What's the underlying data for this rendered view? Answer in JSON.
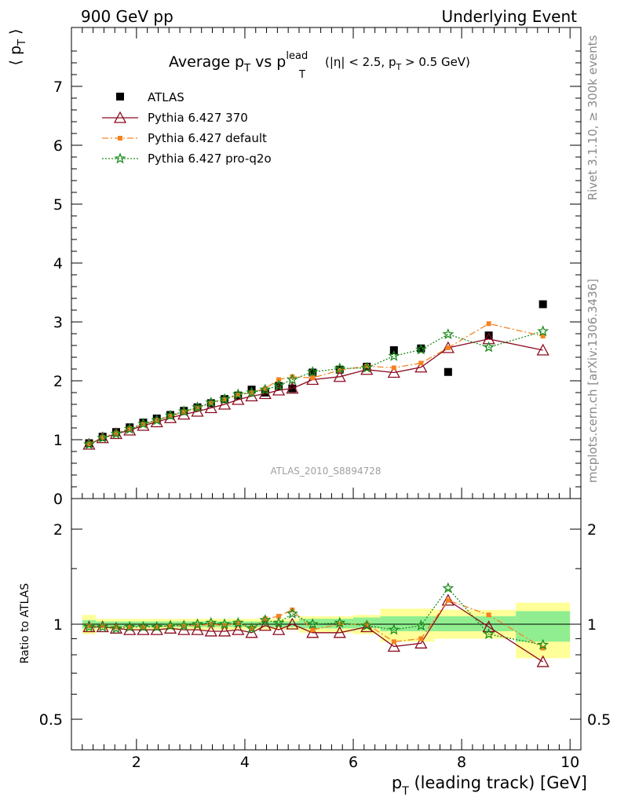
{
  "header": {
    "left": "900 GeV pp",
    "right": "Underlying Event"
  },
  "plot_title": {
    "main": "Average p",
    "main_sub": "T",
    "vs": " vs p",
    "vs_sup": "lead",
    "vs_sub": "T",
    "cuts_a": "(|η| < 2.5, p",
    "cuts_sub": "T",
    "cuts_b": " > 0.5 GeV)"
  },
  "side_labels": {
    "rivet": "Rivet 3.1.10, ≥ 300k events",
    "mcplots": "mcplots.cern.ch [arXiv:1306.3436]"
  },
  "analysis_label": "ATLAS_2010_S8894728",
  "colors": {
    "atlas": "#000000",
    "p370": "#8b0a1e",
    "default": "#f58220",
    "proq2o": "#1e8c1e",
    "band_inner": "#90ee90",
    "band_outer": "#ffff99"
  },
  "chart_data": [
    {
      "type": "scatter",
      "panel": "main",
      "ylabel_a": "⟨ p",
      "ylabel_sub": "T",
      "ylabel_b": " ⟩",
      "xlim": [
        0.8,
        10.2
      ],
      "ylim": [
        0,
        8
      ],
      "yticks": [
        0,
        1,
        2,
        3,
        4,
        5,
        6,
        7
      ],
      "legend_position": "top-left",
      "x": [
        1.125,
        1.375,
        1.625,
        1.875,
        2.125,
        2.375,
        2.625,
        2.875,
        3.125,
        3.375,
        3.625,
        3.875,
        4.125,
        4.375,
        4.625,
        4.875,
        5.25,
        5.75,
        6.25,
        6.75,
        7.25,
        7.75,
        8.5,
        9.5
      ],
      "series": [
        {
          "name": "ATLAS",
          "marker": "square",
          "values": [
            0.94,
            1.05,
            1.13,
            1.21,
            1.29,
            1.36,
            1.42,
            1.49,
            1.55,
            1.62,
            1.69,
            1.75,
            1.85,
            1.8,
            1.91,
            1.87,
            2.14,
            2.19,
            2.24,
            2.52,
            2.55,
            2.15,
            2.77,
            3.3
          ]
        },
        {
          "name": "Pythia 6.427 370",
          "marker": "triangle",
          "values": [
            0.92,
            1.03,
            1.1,
            1.16,
            1.24,
            1.3,
            1.37,
            1.43,
            1.48,
            1.54,
            1.6,
            1.68,
            1.74,
            1.78,
            1.84,
            1.87,
            2.02,
            2.07,
            2.19,
            2.14,
            2.23,
            2.56,
            2.71,
            2.52
          ]
        },
        {
          "name": "Pythia 6.427 default",
          "marker": "small-square",
          "values": [
            0.93,
            1.04,
            1.11,
            1.19,
            1.26,
            1.33,
            1.4,
            1.47,
            1.53,
            1.62,
            1.68,
            1.76,
            1.8,
            1.87,
            2.02,
            2.07,
            2.05,
            2.18,
            2.25,
            2.22,
            2.3,
            2.56,
            2.97,
            2.76
          ]
        },
        {
          "name": "Pythia 6.427 pro-q2o",
          "marker": "star",
          "values": [
            0.92,
            1.03,
            1.1,
            1.18,
            1.27,
            1.33,
            1.41,
            1.48,
            1.55,
            1.63,
            1.69,
            1.77,
            1.8,
            1.85,
            1.92,
            2.02,
            2.15,
            2.21,
            2.22,
            2.42,
            2.53,
            2.79,
            2.57,
            2.84
          ]
        }
      ]
    },
    {
      "type": "scatter",
      "panel": "ratio",
      "ylabel": "Ratio to ATLAS",
      "xlabel_a": "p",
      "xlabel_sub": "T",
      "xlabel_b": " (leading track) [GeV]",
      "scale": "log",
      "ylim": [
        0.4,
        2.5
      ],
      "yticks": [
        0.5,
        1,
        2
      ],
      "xticks": [
        2,
        4,
        6,
        8,
        10
      ],
      "x": [
        1.125,
        1.375,
        1.625,
        1.875,
        2.125,
        2.375,
        2.625,
        2.875,
        3.125,
        3.375,
        3.625,
        3.875,
        4.125,
        4.375,
        4.625,
        4.875,
        5.25,
        5.75,
        6.25,
        6.75,
        7.25,
        7.75,
        8.5,
        9.5
      ],
      "series": [
        {
          "name": "Pythia 6.427 370",
          "values": [
            0.98,
            0.98,
            0.97,
            0.96,
            0.96,
            0.96,
            0.97,
            0.96,
            0.96,
            0.95,
            0.95,
            0.96,
            0.94,
            0.99,
            0.96,
            1.0,
            0.94,
            0.94,
            0.98,
            0.85,
            0.87,
            1.19,
            0.98,
            0.76
          ]
        },
        {
          "name": "Pythia 6.427 default",
          "values": [
            0.99,
            0.99,
            0.98,
            0.98,
            0.98,
            0.98,
            0.99,
            0.99,
            0.99,
            1.0,
            0.99,
            1.01,
            0.97,
            1.04,
            1.06,
            1.11,
            0.96,
            1.0,
            1.0,
            0.88,
            0.9,
            1.19,
            1.07,
            0.84
          ]
        },
        {
          "name": "Pythia 6.427 pro-q2o",
          "values": [
            0.98,
            0.98,
            0.97,
            0.98,
            0.98,
            0.98,
            0.99,
            0.99,
            1.0,
            1.01,
            1.0,
            1.01,
            0.97,
            1.03,
            1.01,
            1.08,
            1.0,
            1.01,
            0.99,
            0.96,
            0.99,
            1.3,
            0.93,
            0.86
          ]
        }
      ],
      "bands": [
        {
          "x0": 1.0,
          "x1": 1.25,
          "inner": [
            0.97,
            1.03
          ],
          "outer": [
            0.93,
            1.07
          ]
        },
        {
          "x0": 1.25,
          "x1": 5.0,
          "inner": [
            0.98,
            1.02
          ],
          "outer": [
            0.96,
            1.04
          ]
        },
        {
          "x0": 5.0,
          "x1": 6.0,
          "inner": [
            0.97,
            1.04
          ],
          "outer": [
            0.94,
            1.06
          ]
        },
        {
          "x0": 6.0,
          "x1": 6.5,
          "inner": [
            0.97,
            1.05
          ],
          "outer": [
            0.93,
            1.07
          ]
        },
        {
          "x0": 6.5,
          "x1": 7.5,
          "inner": [
            0.95,
            1.06
          ],
          "outer": [
            0.88,
            1.12
          ]
        },
        {
          "x0": 7.5,
          "x1": 9.0,
          "inner": [
            0.95,
            1.06
          ],
          "outer": [
            0.9,
            1.11
          ]
        },
        {
          "x0": 9.0,
          "x1": 10.0,
          "inner": [
            0.88,
            1.1
          ],
          "outer": [
            0.78,
            1.17
          ]
        }
      ]
    }
  ]
}
